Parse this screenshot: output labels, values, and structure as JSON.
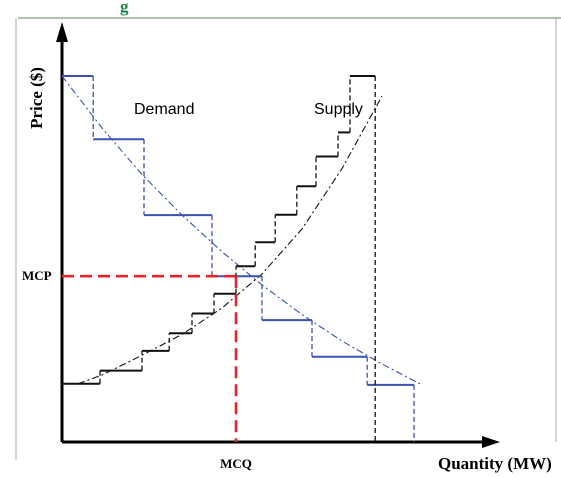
{
  "chart_data": {
    "type": "line",
    "top_caption": "g",
    "xlabel": "Quantity (MW)",
    "ylabel": "Price ($)",
    "xlim": [
      0,
      100
    ],
    "ylim": [
      0,
      100
    ],
    "grid": false,
    "tick_labels": {
      "x": [
        {
          "label": "MCQ",
          "value": 43.5
        }
      ],
      "y": [
        {
          "label": "MCP",
          "value": 45.3
        }
      ]
    },
    "series": [
      {
        "name": "Demand",
        "color": "#3a53b0",
        "step_x": [
          0,
          7.8,
          7.8,
          20.5,
          20.5,
          37.5,
          37.5,
          50.0,
          50.0,
          62.5,
          62.5,
          76.3,
          76.3,
          88.0,
          88.0
        ],
        "step_y": [
          100.0,
          100.0,
          82.7,
          82.7,
          62.0,
          62.0,
          45.3,
          45.3,
          33.3,
          33.3,
          23.3,
          23.3,
          15.6,
          15.6,
          0
        ],
        "curve_x": [
          0,
          10,
          20,
          30,
          40,
          50,
          60,
          70,
          80,
          90
        ],
        "curve_y": [
          100.0,
          85.8,
          73.1,
          62.0,
          52.0,
          42.9,
          34.8,
          27.6,
          21.3,
          15.6
        ]
      },
      {
        "name": "Supply",
        "color": "#111111",
        "step_x": [
          0,
          9.5,
          9.5,
          20.0,
          20.0,
          26.8,
          26.8,
          32.5,
          32.5,
          38.0,
          38.0,
          43.5,
          43.5,
          48.3,
          48.3,
          53.3,
          53.3,
          58.7,
          58.7,
          63.5,
          63.5,
          69.0,
          69.0,
          72.0,
          72.0,
          78.3,
          78.3
        ],
        "step_y": [
          15.9,
          15.9,
          19.5,
          19.5,
          24.9,
          24.9,
          29.7,
          29.7,
          35.1,
          35.1,
          40.5,
          40.5,
          48.0,
          48.0,
          54.6,
          54.6,
          62.1,
          62.1,
          69.9,
          69.9,
          78.0,
          78.0,
          84.6,
          84.6,
          100.0,
          100.0,
          0
        ],
        "curve_x": [
          4,
          10,
          20,
          30,
          40,
          50,
          60,
          70,
          80
        ],
        "curve_y": [
          15.9,
          18.3,
          23.7,
          29.4,
          36.6,
          45.9,
          58.2,
          74.7,
          94.5
        ]
      }
    ],
    "annotations": [
      {
        "text": "Demand",
        "x": 18,
        "y": 91
      },
      {
        "text": "Supply",
        "x": 63,
        "y": 91
      }
    ],
    "equilibrium": {
      "x": 43.5,
      "y": 45.3,
      "color": "#e8242a",
      "label_x": "MCQ",
      "label_y": "MCP"
    },
    "frame_color": "#aaaaaa",
    "top_rule_color": "#4f8f4f",
    "caption_color": "#1a8a4a"
  }
}
